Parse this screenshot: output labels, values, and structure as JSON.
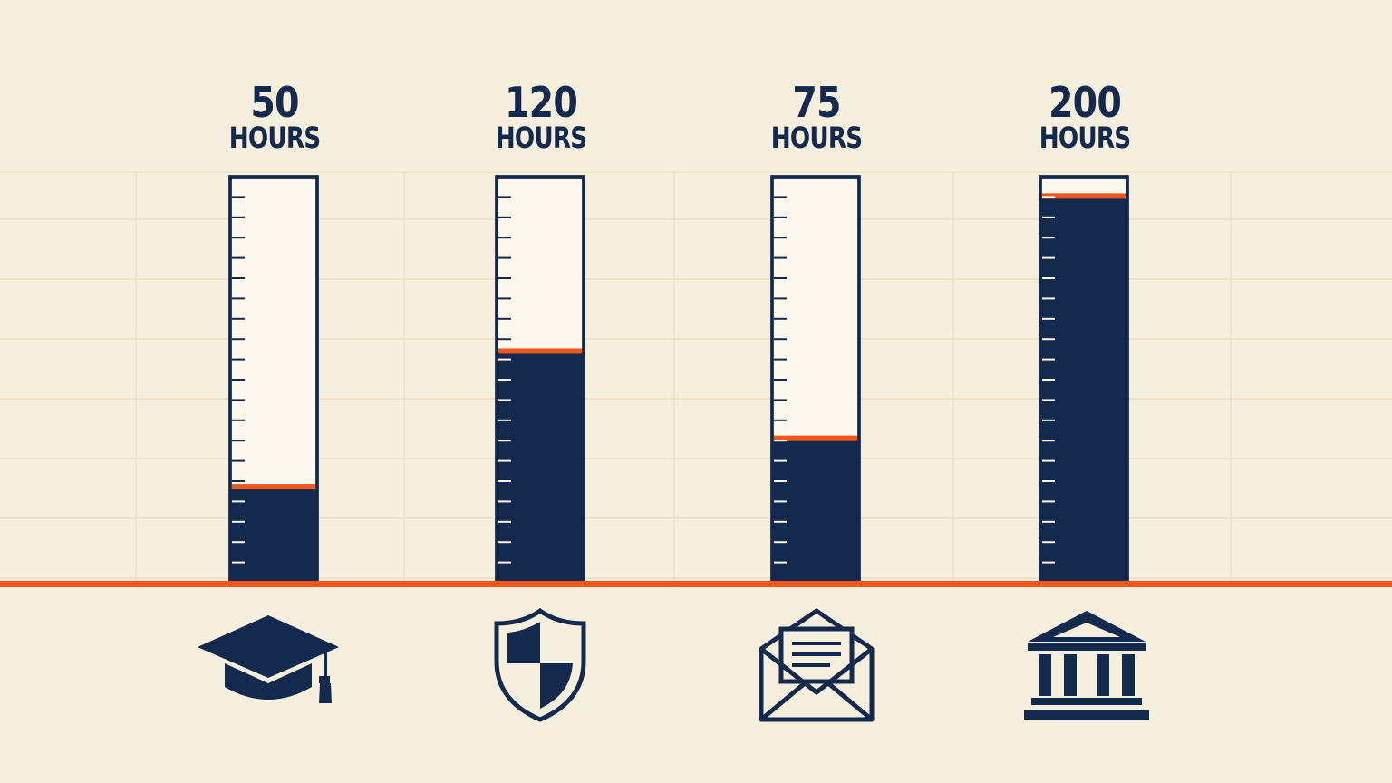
{
  "colors": {
    "background": "#f6efde",
    "grid": "#ecdcc3",
    "navy": "#132a4e",
    "accent": "#f2561d",
    "tube_empty": "#fcf8ee"
  },
  "chart_data": {
    "type": "bar",
    "style": "measuring-cylinders",
    "ylim": [
      0,
      210
    ],
    "grid": true,
    "categories": [
      "graduation-cap-icon",
      "shield-icon",
      "envelope-icon",
      "bank-building-icon"
    ],
    "values": [
      50,
      120,
      75,
      200
    ],
    "labels": [
      {
        "value": "50",
        "unit": "HOURS"
      },
      {
        "value": "120",
        "unit": "HOURS"
      },
      {
        "value": "75",
        "unit": "HOURS"
      },
      {
        "value": "200",
        "unit": "HOURS"
      }
    ]
  }
}
